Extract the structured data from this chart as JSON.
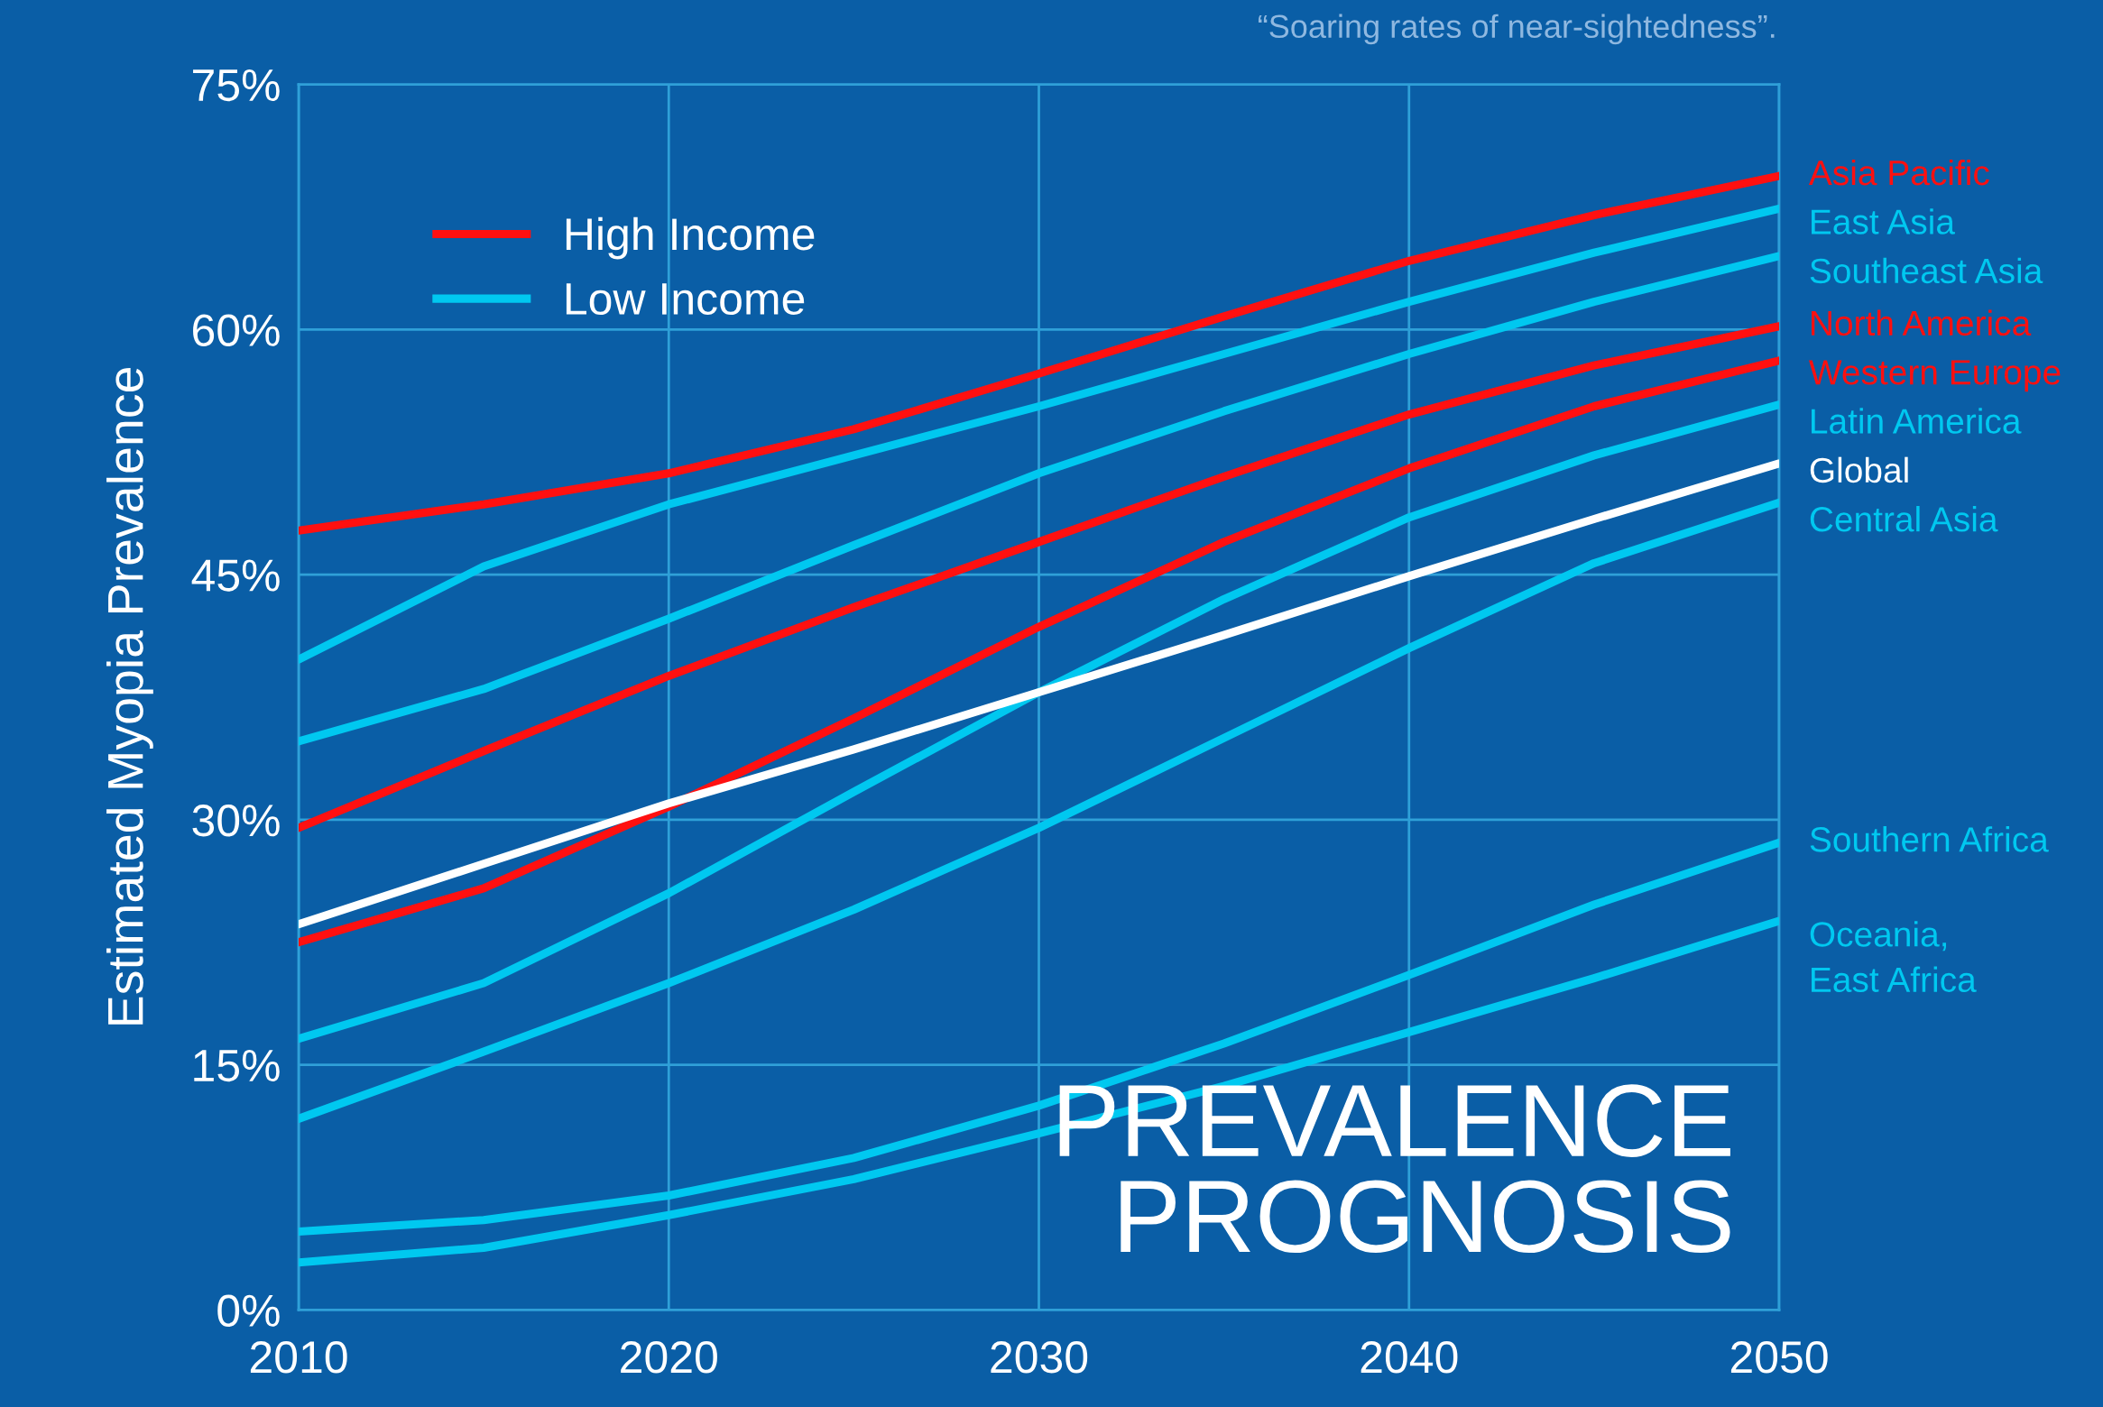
{
  "chart_data": {
    "type": "line",
    "title": "PREVALENCE\nPROGNOSIS",
    "ylabel": "Estimated Myopia Prevalence",
    "annotations": [
      "High Income",
      "Low Income",
      "“Soaring rates of near-sightedness”."
    ],
    "x": [
      2010,
      2015,
      2020,
      2025,
      2030,
      2035,
      2040,
      2045,
      2050
    ],
    "series": [
      {
        "name": "Asia Pacific",
        "color": "#ff1010",
        "values": [
          47.7,
          49.3,
          51.2,
          53.9,
          57.3,
          60.8,
          64.2,
          67.0,
          69.4
        ]
      },
      {
        "name": "East Asia",
        "color": "#00c8f0",
        "values": [
          39.8,
          45.5,
          49.3,
          52.3,
          55.3,
          58.5,
          61.7,
          64.7,
          67.4
        ]
      },
      {
        "name": "Southeast Asia",
        "color": "#00c8f0",
        "values": [
          34.8,
          38.0,
          42.3,
          46.8,
          51.2,
          55.0,
          58.5,
          61.7,
          64.5
        ]
      },
      {
        "name": "North America",
        "color": "#ff1010",
        "values": [
          29.5,
          34.2,
          38.8,
          43.0,
          47.0,
          51.0,
          54.8,
          57.8,
          60.2
        ]
      },
      {
        "name": "Western Europe",
        "color": "#ff1010",
        "values": [
          22.5,
          25.8,
          30.8,
          36.2,
          41.8,
          47.0,
          51.5,
          55.3,
          58.1
        ]
      },
      {
        "name": "Latin America",
        "color": "#00c8f0",
        "values": [
          16.6,
          20.0,
          25.5,
          31.7,
          37.8,
          43.5,
          48.5,
          52.3,
          55.4
        ]
      },
      {
        "name": "Global",
        "color": "#ffffff",
        "values": [
          23.6,
          27.3,
          31.0,
          34.3,
          37.8,
          41.3,
          44.9,
          48.4,
          51.8
        ]
      },
      {
        "name": "Central Asia",
        "color": "#00c8f0",
        "values": [
          11.7,
          15.8,
          20.0,
          24.5,
          29.5,
          35.0,
          40.5,
          45.7,
          49.4
        ]
      },
      {
        "name": "Southern Africa",
        "color": "#00c8f0",
        "values": [
          4.8,
          5.5,
          7.0,
          9.3,
          12.5,
          16.3,
          20.5,
          24.8,
          28.6
        ]
      },
      {
        "name": "Oceania,\nEast Africa",
        "color": "#00c8f0",
        "values": [
          2.9,
          3.8,
          5.8,
          8.0,
          10.8,
          13.7,
          17.0,
          20.3,
          23.8
        ]
      }
    ],
    "xlim": [
      2010,
      2050
    ],
    "xticks": [
      2010,
      2020,
      2030,
      2040,
      2050
    ],
    "ylim": [
      0,
      75
    ],
    "yticks": [
      {
        "value": 0,
        "label": "0%"
      },
      {
        "value": 15,
        "label": "15%"
      },
      {
        "value": 30,
        "label": "30%"
      },
      {
        "value": 45,
        "label": "45%"
      },
      {
        "value": 60,
        "label": "60%"
      },
      {
        "value": 75,
        "label": "75%"
      }
    ],
    "grid": true,
    "legend": "right",
    "marker": "none",
    "line_style": "solid"
  }
}
